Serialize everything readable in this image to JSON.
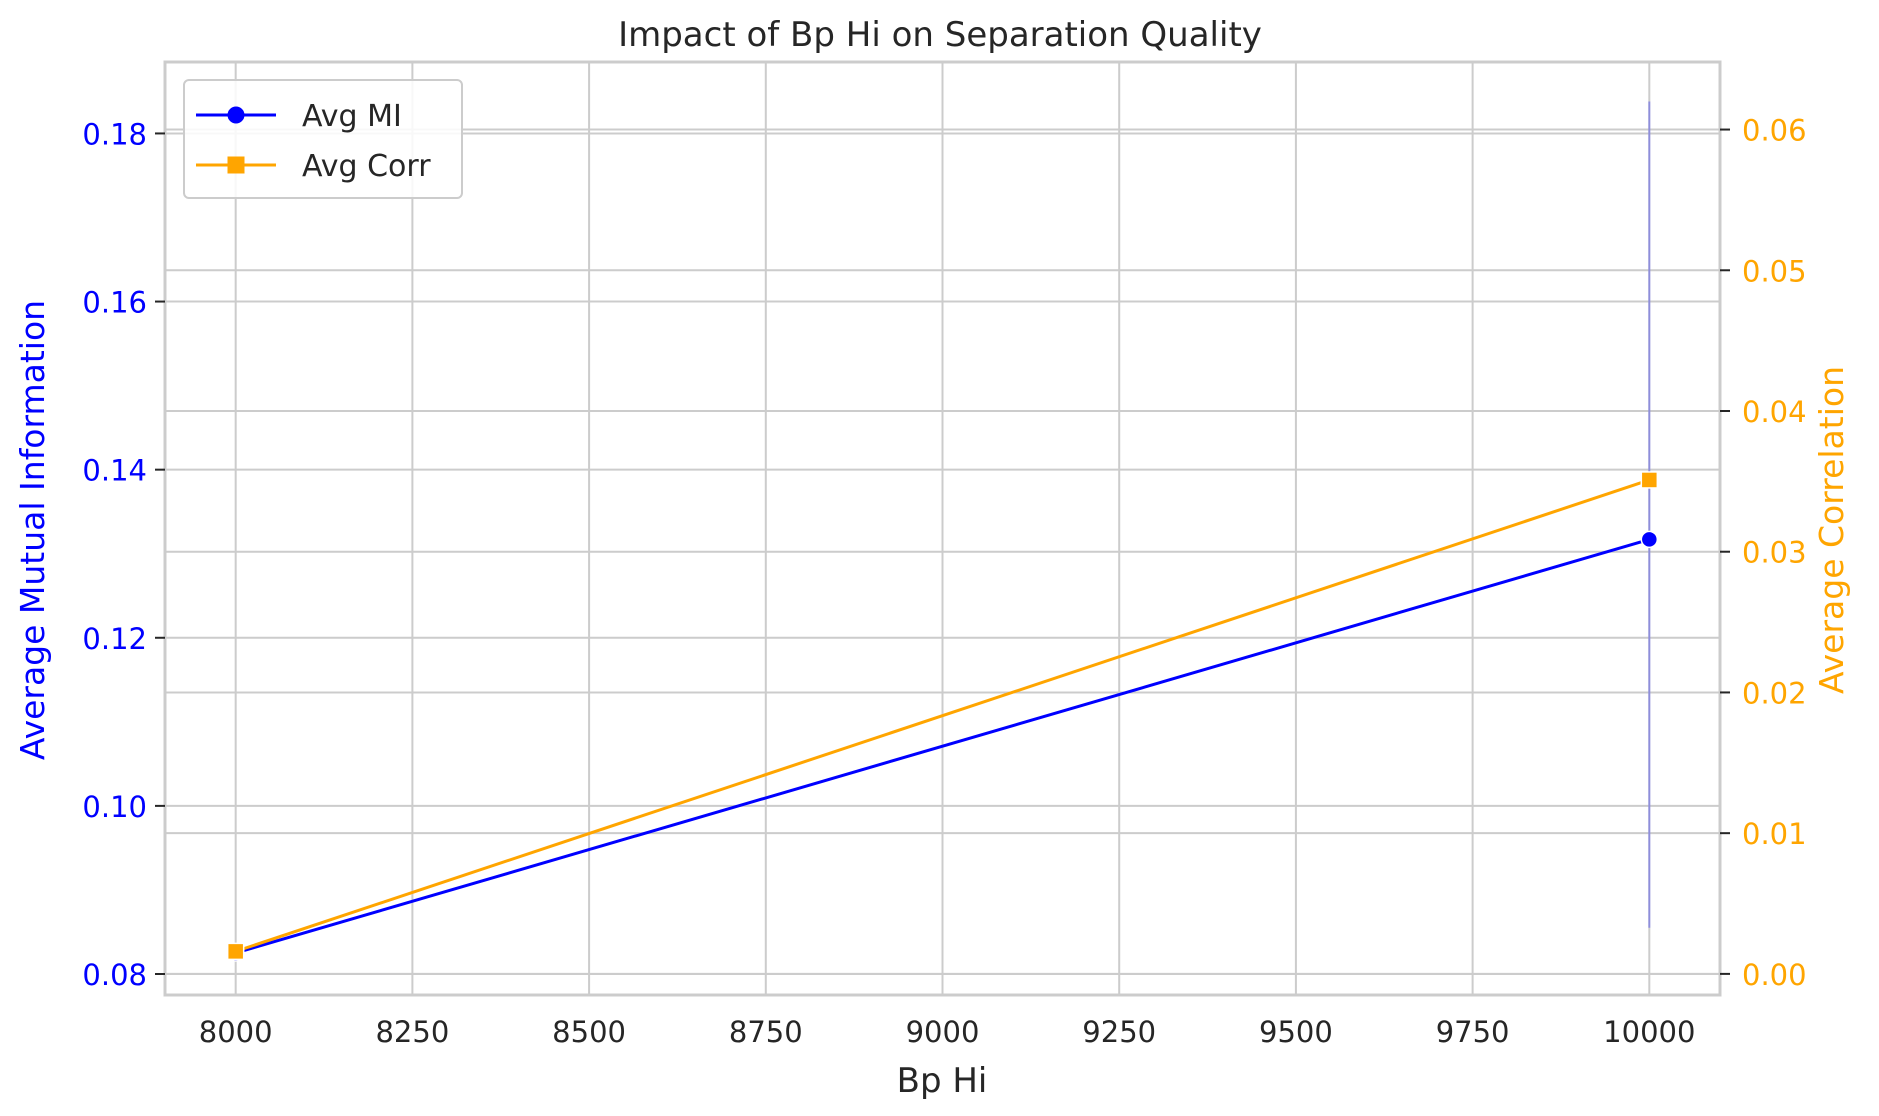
{
  "chart_data": {
    "type": "line",
    "title": "Impact of Bp Hi on Separation Quality",
    "xlabel": "Bp Hi",
    "ylabel_left": "Average Mutual Information",
    "ylabel_right": "Average Correlation",
    "xlim": [
      7900,
      10100
    ],
    "ylim_left": [
      0.0775,
      0.1885
    ],
    "ylim_right": [
      -0.0015,
      0.0648
    ],
    "x_ticks": [
      "8000",
      "8250",
      "8500",
      "8750",
      "9000",
      "9250",
      "9500",
      "9750",
      "10000"
    ],
    "y_ticks_left": [
      "0.08",
      "0.10",
      "0.12",
      "0.14",
      "0.16",
      "0.18"
    ],
    "y_ticks_right": [
      "0.00",
      "0.01",
      "0.02",
      "0.03",
      "0.04",
      "0.05",
      "0.06"
    ],
    "grid": true,
    "legend_position": "top-left",
    "colors": {
      "left_axis": "#0000ff",
      "right_axis": "#ffa500"
    },
    "series": [
      {
        "name": "Avg MI",
        "axis": "left",
        "marker": "circle",
        "color": "#0000ff",
        "x": [
          8000,
          10000
        ],
        "y": [
          0.0825,
          0.1317
        ],
        "error_band_at_10000": [
          0.0855,
          0.1838
        ]
      },
      {
        "name": "Avg Corr",
        "axis": "right",
        "marker": "square",
        "color": "#ffa500",
        "x": [
          8000,
          10000
        ],
        "y": [
          0.0016,
          0.0351
        ]
      }
    ]
  }
}
